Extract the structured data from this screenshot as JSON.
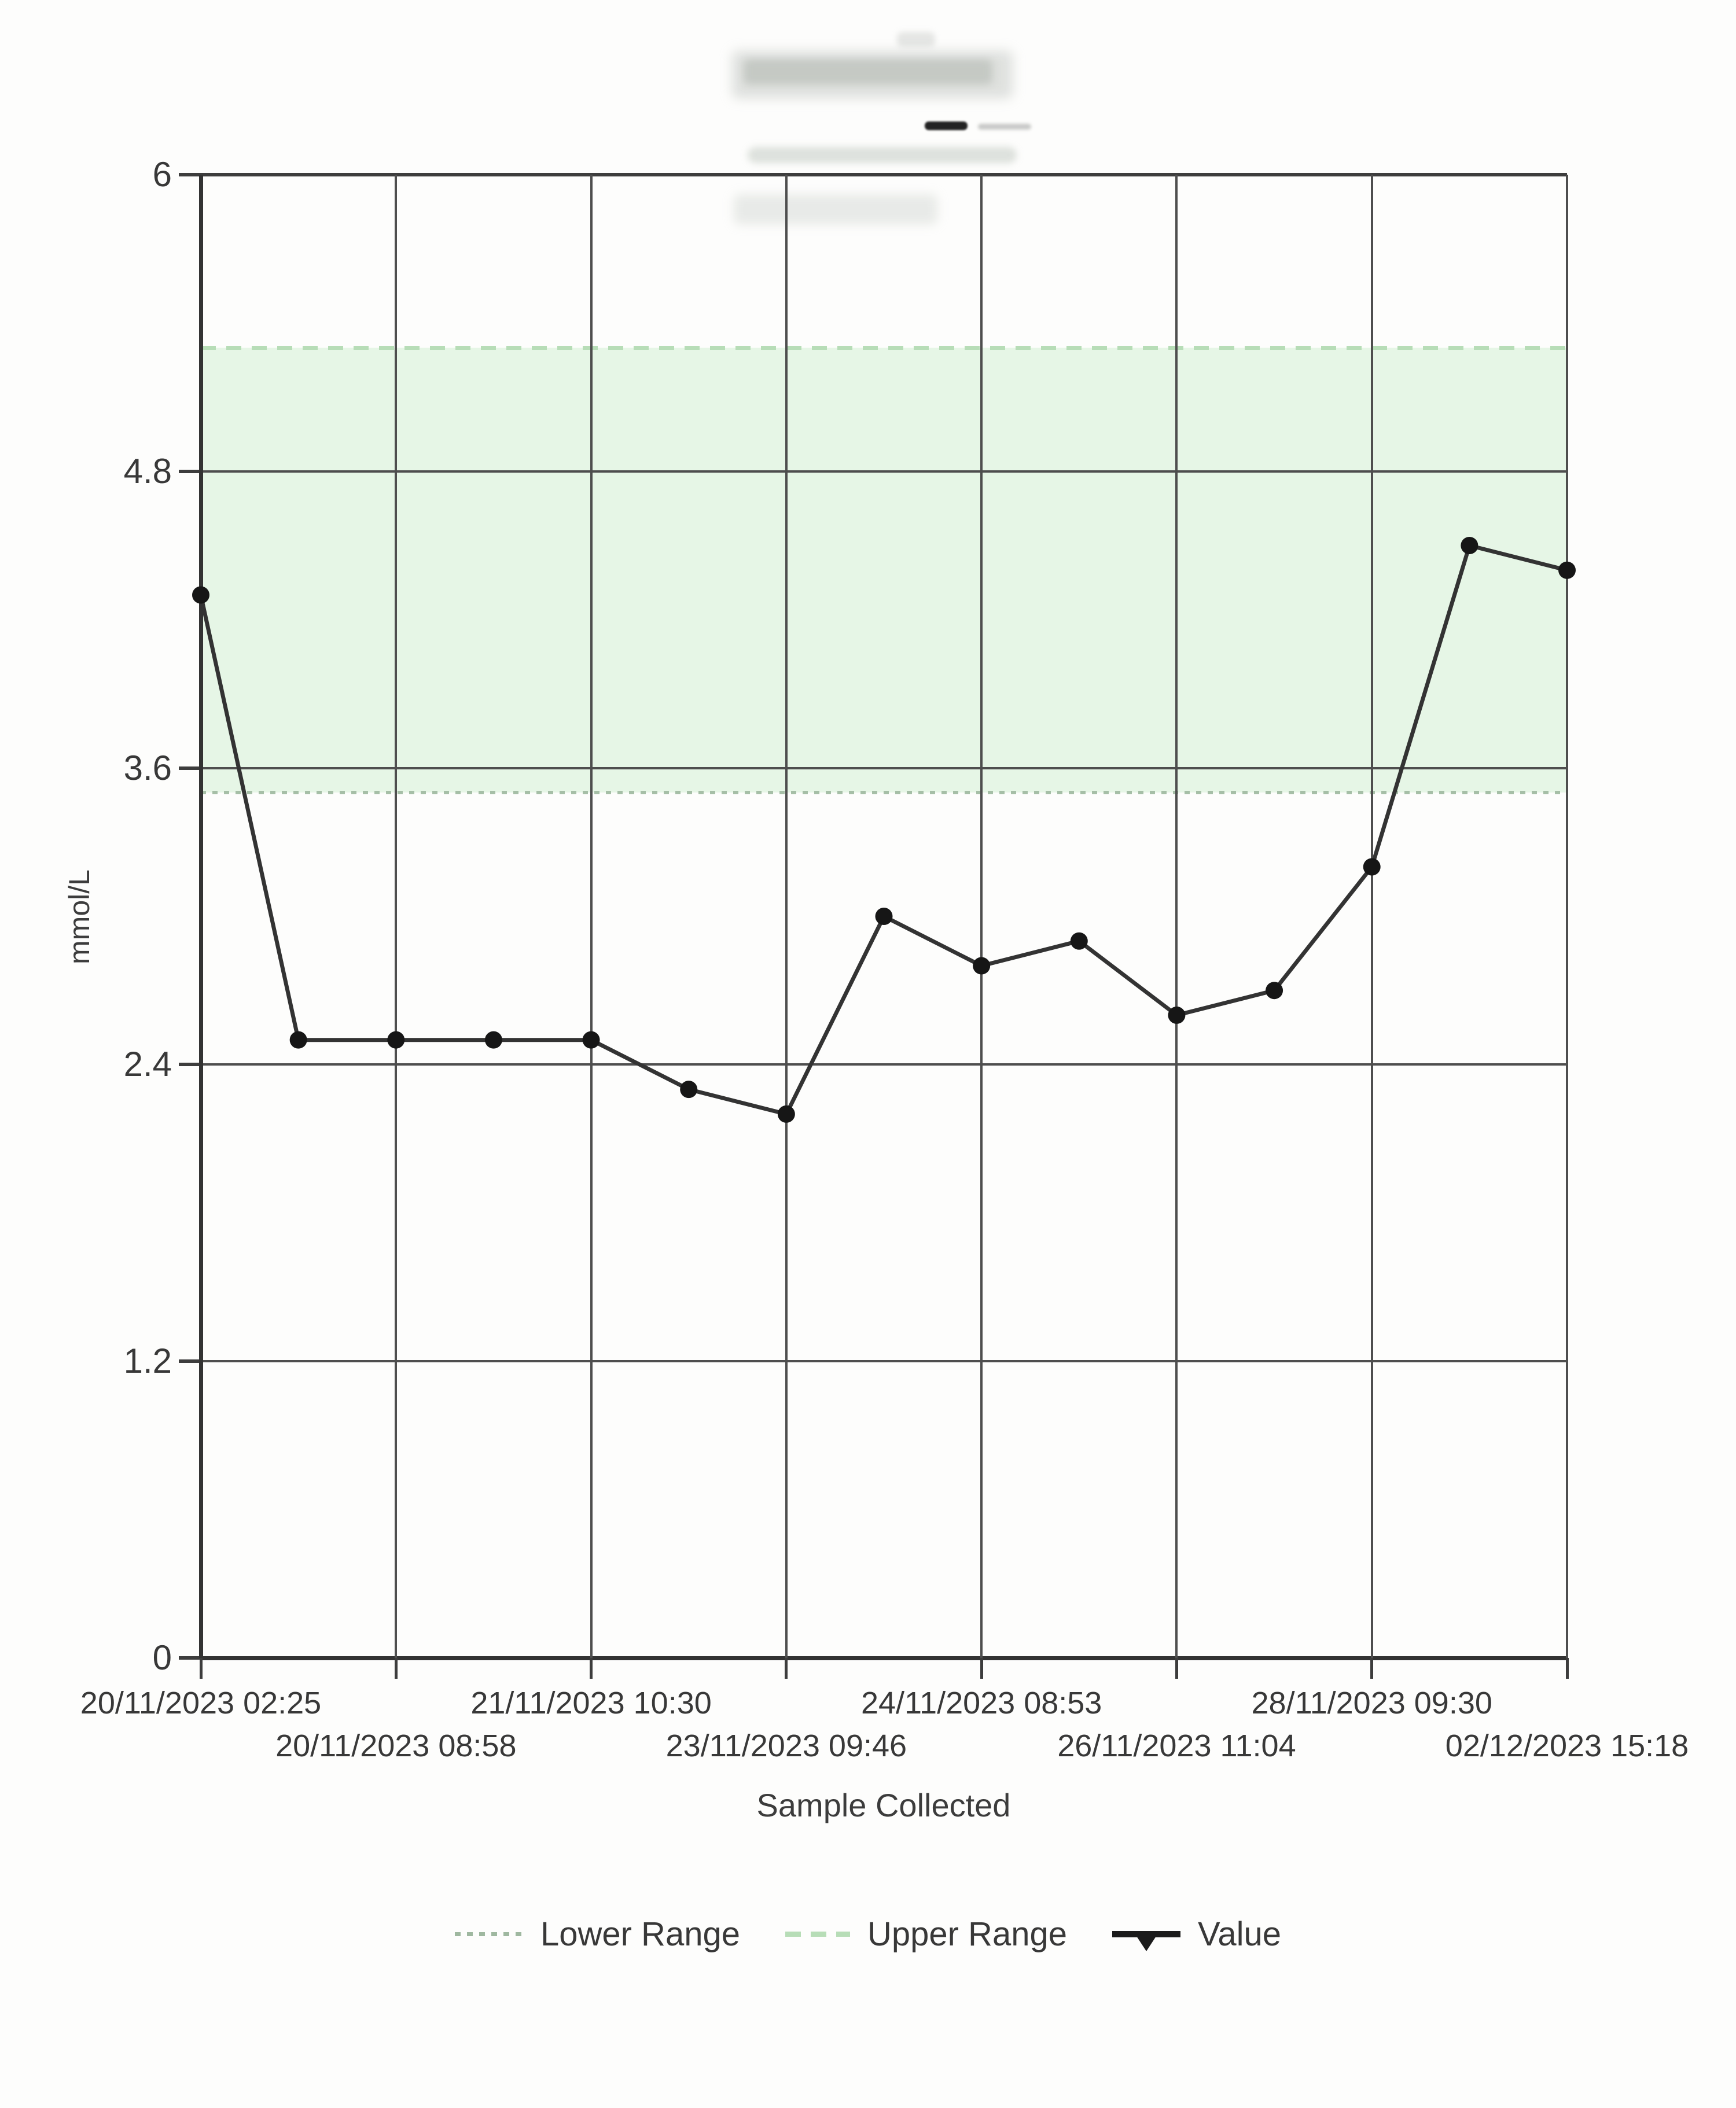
{
  "title": {
    "redacted": true
  },
  "chart_data": {
    "type": "line",
    "ylabel": "mmol/L",
    "xlabel": "Sample Collected",
    "ylim": [
      0,
      6
    ],
    "yticks": [
      0,
      1.2,
      2.4,
      3.6,
      4.8,
      6
    ],
    "ytick_labels": [
      "0",
      "1.2",
      "2.4",
      "3.6",
      "4.8",
      "6"
    ],
    "x_tick_labels": [
      "20/11/2023 02:25",
      "20/11/2023 08:58",
      "21/11/2023 10:30",
      "23/11/2023 09:46",
      "24/11/2023 08:53",
      "26/11/2023 11:04",
      "28/11/2023 09:30",
      "02/12/2023 15:18"
    ],
    "lower_range": 3.5,
    "upper_range": 5.3,
    "series": [
      {
        "name": "Value",
        "values": [
          4.3,
          2.5,
          2.5,
          2.5,
          2.5,
          2.3,
          2.2,
          3.0,
          2.8,
          2.9,
          2.6,
          2.7,
          3.2,
          4.5,
          4.4
        ]
      }
    ],
    "legend": [
      {
        "label": "Lower Range",
        "style": "dotted"
      },
      {
        "label": "Upper Range",
        "style": "dashed"
      },
      {
        "label": "Value",
        "style": "solid-marker"
      }
    ],
    "grid": true,
    "legend_position": "bottom",
    "colors": {
      "band_fill": "#e6f6e6",
      "upper_range_line": "#b7ddb7",
      "lower_range_line": "#a6bfa7",
      "series_line": "#333333",
      "marker": "#161616",
      "grid_line": "#4e4e4e",
      "axis_line": "#333333",
      "text": "#383838"
    }
  }
}
